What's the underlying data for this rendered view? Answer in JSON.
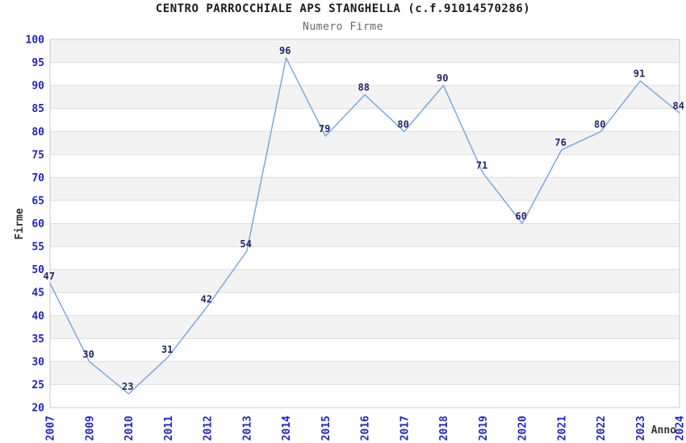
{
  "header": {
    "title": "CENTRO PARROCCHIALE APS STANGHELLA (c.f.91014570286)",
    "subtitle": "Numero Firme"
  },
  "chart_data": {
    "type": "line",
    "title": "CENTRO PARROCCHIALE APS STANGHELLA (c.f.91014570286)",
    "subtitle": "Numero Firme",
    "categories": [
      "2007",
      "2009",
      "2010",
      "2011",
      "2012",
      "2013",
      "2014",
      "2015",
      "2016",
      "2017",
      "2018",
      "2019",
      "2020",
      "2021",
      "2022",
      "2023",
      "2024"
    ],
    "values": [
      47,
      30,
      23,
      31,
      42,
      54,
      96,
      79,
      88,
      80,
      90,
      71,
      60,
      76,
      80,
      91,
      84
    ],
    "xlabel": "Anno",
    "ylabel": "Firme",
    "ylim": [
      20,
      100
    ],
    "ytick_step": 5,
    "grid": true,
    "alternating_bands": true,
    "legend_position": "none",
    "point_labels_visible": true,
    "colors": {
      "line": "#79a9e0",
      "point_label": "#24246e",
      "tick_label": "#2222cc",
      "band": "#f3f3f3",
      "gridline": "#dedede",
      "border": "#c9c9c9",
      "title": "#1c1c1c",
      "subtitle": "#666666",
      "axis_label": "#333333"
    }
  }
}
